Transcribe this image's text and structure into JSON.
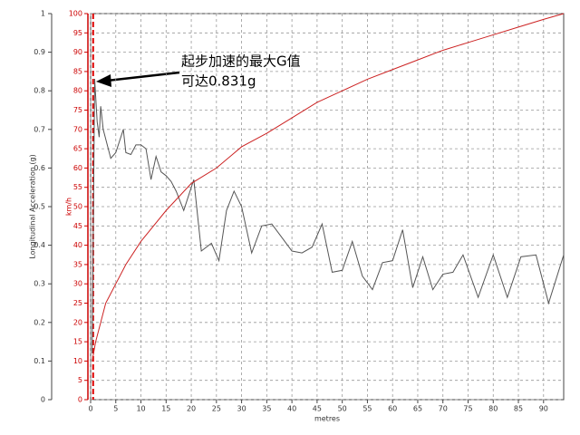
{
  "chart_data": {
    "type": "line",
    "xlabel": "metres",
    "ylabel": "Longitudinal Acceleration (g)",
    "y2label": "km/h",
    "xlim": [
      0,
      94
    ],
    "xticks": [
      0,
      5,
      10,
      15,
      20,
      25,
      30,
      35,
      40,
      45,
      50,
      55,
      60,
      65,
      70,
      75,
      80,
      85,
      90
    ],
    "ylim": [
      0,
      1
    ],
    "yticks": [
      0,
      0.1,
      0.2,
      0.3,
      0.4,
      0.5,
      0.6,
      0.7,
      0.8,
      0.9,
      1
    ],
    "y2lim": [
      0,
      100
    ],
    "y2ticks": [
      0,
      5,
      10,
      15,
      20,
      25,
      30,
      35,
      40,
      45,
      50,
      55,
      60,
      65,
      70,
      75,
      80,
      85,
      90,
      95,
      100
    ],
    "grid": true,
    "marker_x": 0.5,
    "annotation": [
      "起步加速的最大G值",
      "可达0.831g"
    ],
    "series": [
      {
        "color": "#555555",
        "axis": "y",
        "x": [
          0.3,
          0.8,
          1.3,
          1.7,
          2,
          2.5,
          4,
          5,
          6.5,
          7,
          8,
          9,
          10,
          11,
          12,
          13,
          14,
          15,
          16,
          17,
          18.5,
          20.5,
          22,
          24,
          25.5,
          27,
          28.5,
          30,
          32,
          34,
          36,
          38,
          40,
          42,
          44,
          46,
          48,
          50,
          52,
          54,
          56,
          58,
          60,
          62,
          64,
          66,
          68,
          70,
          72,
          74,
          77,
          80,
          82.8,
          85.5,
          88.5,
          91,
          94
        ],
        "values": [
          0.12,
          0.831,
          0.72,
          0.68,
          0.76,
          0.7,
          0.625,
          0.64,
          0.7,
          0.64,
          0.635,
          0.66,
          0.66,
          0.65,
          0.57,
          0.63,
          0.59,
          0.58,
          0.565,
          0.54,
          0.49,
          0.57,
          0.385,
          0.405,
          0.36,
          0.49,
          0.54,
          0.5,
          0.38,
          0.45,
          0.455,
          0.42,
          0.385,
          0.38,
          0.395,
          0.455,
          0.33,
          0.335,
          0.41,
          0.32,
          0.285,
          0.355,
          0.36,
          0.44,
          0.29,
          0.37,
          0.285,
          0.325,
          0.33,
          0.375,
          0.265,
          0.375,
          0.265,
          0.37,
          0.375,
          0.25,
          0.375
        ]
      },
      {
        "color": "#cc2222",
        "axis": "y2",
        "x": [
          0.3,
          1,
          3,
          5,
          7,
          10,
          15,
          20,
          25,
          30,
          35,
          40,
          45,
          50,
          55,
          60,
          65,
          70,
          75,
          80,
          85,
          90,
          94
        ],
        "values": [
          10,
          15,
          25,
          30,
          35,
          41,
          49,
          56,
          60,
          65.5,
          69,
          73,
          77,
          80,
          83,
          85.5,
          88,
          90.5,
          92.5,
          94.5,
          96.5,
          98.5,
          100
        ]
      }
    ]
  }
}
